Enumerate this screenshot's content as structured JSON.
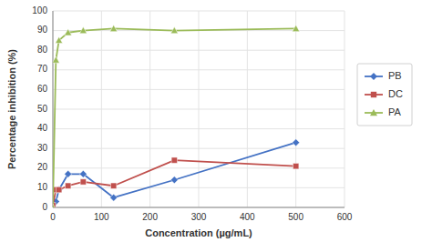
{
  "chart_data": {
    "type": "line",
    "x": [
      0,
      6.25,
      12.5,
      31.25,
      62.5,
      125,
      250,
      500
    ],
    "series": [
      {
        "name": "PB",
        "color": "#4472c4",
        "marker": "diamond",
        "values": [
          0,
          3,
          9,
          17,
          17,
          5,
          14,
          33
        ]
      },
      {
        "name": "DC",
        "color": "#c0504d",
        "marker": "square",
        "values": [
          1,
          9,
          9,
          11,
          13,
          11,
          24,
          21
        ]
      },
      {
        "name": "PA",
        "color": "#9bbb59",
        "marker": "triangle",
        "values": [
          0,
          75,
          85,
          89,
          90,
          91,
          90,
          91
        ]
      }
    ],
    "xlabel": "Concentration (µg/mL)",
    "ylabel": "Percentage inhibition (%)",
    "xlim": [
      0,
      600
    ],
    "ylim": [
      0,
      100
    ],
    "xticks": [
      0,
      100,
      200,
      300,
      400,
      500,
      600
    ],
    "yticks": [
      0,
      10,
      20,
      30,
      40,
      50,
      60,
      70,
      80,
      90,
      100
    ],
    "grid": true,
    "legend": "right"
  }
}
